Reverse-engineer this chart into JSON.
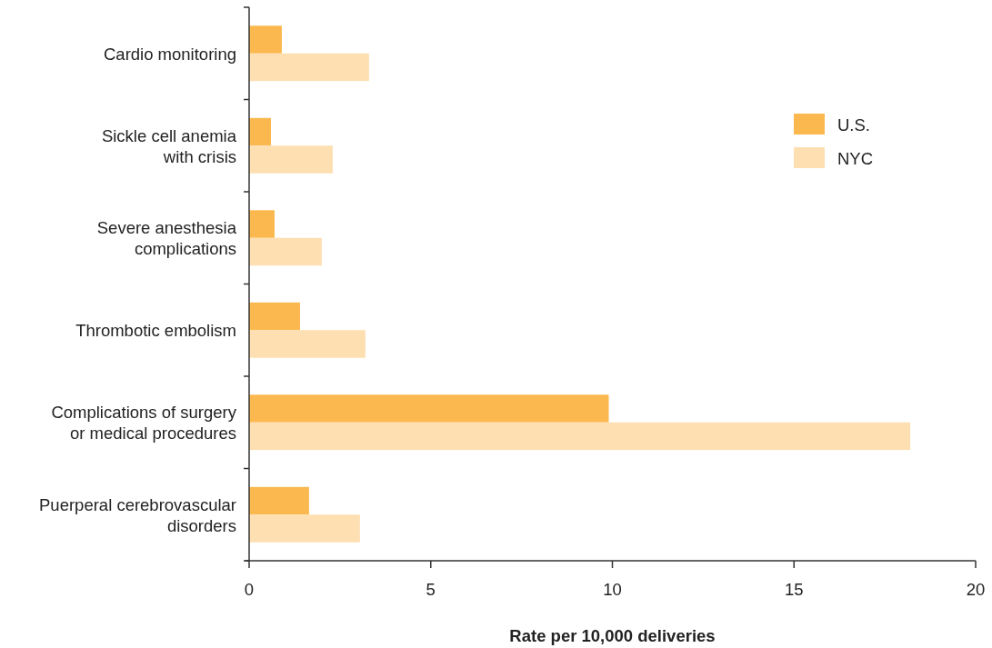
{
  "chart_data": {
    "type": "bar",
    "orientation": "horizontal",
    "xlabel": "Rate per 10,000 deliveries",
    "categories": [
      "Cardio monitoring",
      "Sickle cell anemia with crisis",
      "Severe anesthesia complications",
      "Thrombotic embolism",
      "Complications of surgery or medical procedures",
      "Puerperal cerebrovascular disorders"
    ],
    "series": [
      {
        "name": "U.S.",
        "color": "#fbb84e",
        "values": [
          0.9,
          0.6,
          0.7,
          1.4,
          9.9,
          1.65
        ]
      },
      {
        "name": "NYC",
        "color": "#fddfb1",
        "values": [
          3.3,
          2.3,
          2.0,
          3.2,
          18.2,
          3.05
        ]
      }
    ],
    "xlim": [
      0,
      20
    ],
    "xticks": [
      0,
      5,
      10,
      15,
      20
    ],
    "legend": "top right",
    "grid": false
  }
}
